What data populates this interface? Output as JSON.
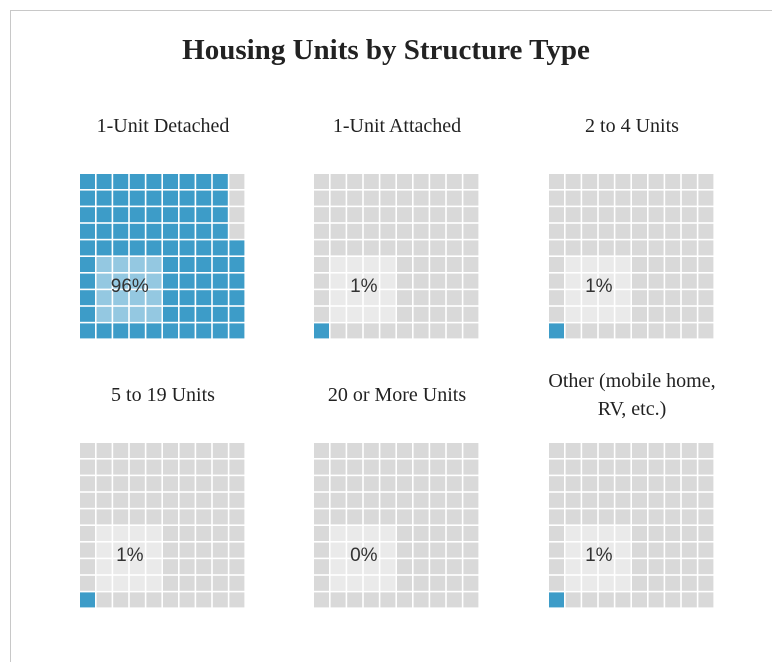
{
  "chart_data": {
    "type": "waffle",
    "title": "Housing Units by Structure Type",
    "categories": [
      "1-Unit Detached",
      "1-Unit Attached",
      "2 to 4 Units",
      "5 to 19 Units",
      "20 or More Units",
      "Other (mobile home, RV, etc.)"
    ],
    "values": [
      96,
      1,
      1,
      1,
      0,
      1
    ],
    "value_labels": [
      "96%",
      "1%",
      "1%",
      "1%",
      "0%",
      "1%"
    ],
    "color": "#3d9cc8",
    "empty_color": "#d9d9d9"
  }
}
